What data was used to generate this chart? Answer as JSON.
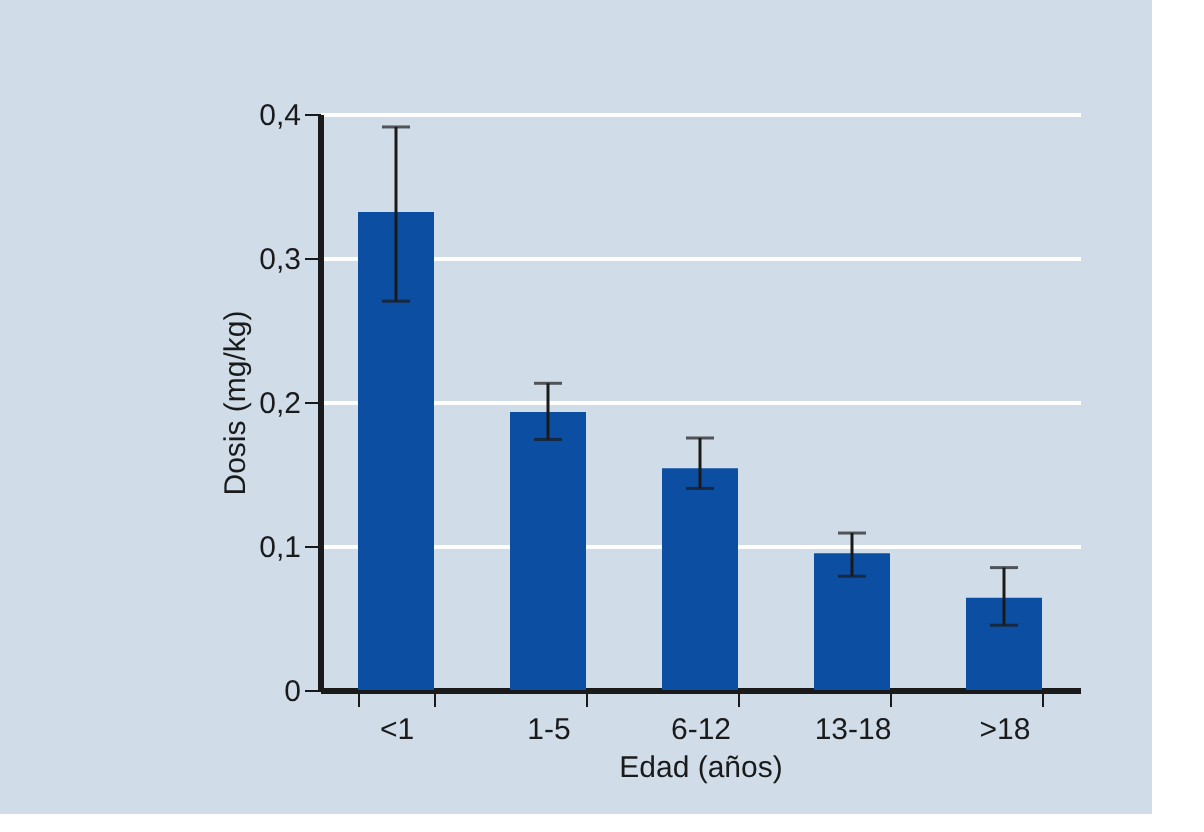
{
  "chart_data": {
    "type": "bar",
    "xlabel": "Edad (años)",
    "ylabel": "Dosis (mg/kg)",
    "categories": [
      "<1",
      "1-5",
      "6-12",
      "13-18",
      ">18"
    ],
    "values": [
      0.332,
      0.193,
      0.154,
      0.095,
      0.064
    ],
    "errors": [
      [
        0.27,
        0.391
      ],
      [
        0.174,
        0.213
      ],
      [
        0.14,
        0.175
      ],
      [
        0.079,
        0.109
      ],
      [
        0.045,
        0.085
      ]
    ],
    "color": "#0c4fa2",
    "ylim": [
      0,
      0.4
    ],
    "yticks": [
      0,
      {
        "value": 0.1,
        "label": "0,1"
      },
      {
        "value": 0.2,
        "label": "0,2"
      },
      {
        "value": 0.3,
        "label": "0,3"
      },
      {
        "value": 0.4,
        "label": "0,4"
      }
    ],
    "grid": "y"
  }
}
